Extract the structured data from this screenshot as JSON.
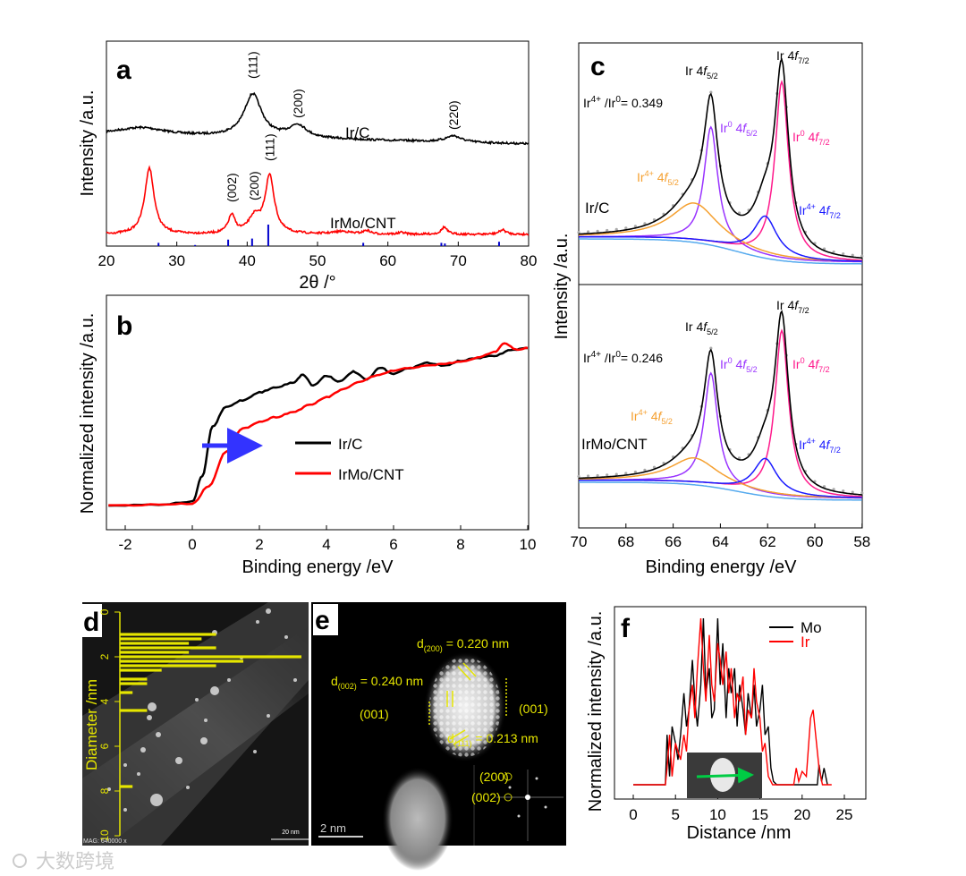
{
  "watermark": "大数跨境",
  "chart_data": [
    {
      "panel": "a",
      "type": "line",
      "title": "",
      "xlabel": "2θ /°",
      "ylabel": "Intensity /a.u.",
      "xlim": [
        20,
        80
      ],
      "xticks": [
        20,
        30,
        40,
        50,
        60,
        70,
        80
      ],
      "series": [
        {
          "name": "Ir/C",
          "color": "#000000",
          "peaks": [
            [
              25,
              4,
              8
            ],
            [
              40.8,
              1.5,
              48
            ],
            [
              47.2,
              1.5,
              14
            ],
            [
              69.3,
              1.3,
              7
            ]
          ]
        },
        {
          "name": "IrMo/CNT",
          "color": "#ff0000",
          "peaks": [
            [
              26.1,
              0.8,
              74
            ],
            [
              37.8,
              0.6,
              20
            ],
            [
              41.0,
              1.0,
              17
            ],
            [
              43.2,
              0.8,
              64
            ],
            [
              53.5,
              1.5,
              3
            ],
            [
              57.0,
              0.6,
              4
            ],
            [
              62,
              0.6,
              2
            ],
            [
              68.0,
              0.5,
              8
            ],
            [
              76.3,
              0.6,
              5
            ]
          ]
        }
      ],
      "reference_lines": {
        "color": "#0000cc",
        "positions": [
          27.4,
          32.6,
          37.3,
          40.7,
          43.0,
          56.5,
          67.6,
          68.1,
          75.8
        ],
        "heights": [
          0.15,
          0.05,
          0.3,
          0.35,
          1.0,
          0.15,
          0.15,
          0.12,
          0.2
        ]
      },
      "peak_labels": [
        {
          "text": "(111)",
          "x": 40.8,
          "series": "Ir/C"
        },
        {
          "text": "(200)",
          "x": 47.2,
          "series": "Ir/C"
        },
        {
          "text": "(220)",
          "x": 69.3,
          "series": "Ir/C"
        },
        {
          "text": "(002)",
          "x": 37.8,
          "series": "IrMo/CNT"
        },
        {
          "text": "(200)",
          "x": 41.0,
          "series": "IrMo/CNT"
        },
        {
          "text": "(111)",
          "x": 43.2,
          "series": "IrMo/CNT"
        }
      ]
    },
    {
      "panel": "b",
      "type": "line",
      "xlabel": "Binding energy /eV",
      "ylabel": "Normalized intensity /a.u.",
      "xlim": [
        -2.5,
        10
      ],
      "xticks": [
        -2,
        0,
        2,
        4,
        6,
        8,
        10
      ],
      "ylim": [
        -0.1,
        1.8
      ],
      "legend": "center-right",
      "series": [
        {
          "name": "Ir/C",
          "color": "#000000",
          "x": [
            -2.5,
            -1,
            0,
            0.3,
            0.6,
            1,
            1.5,
            2,
            2.5,
            3,
            3.3,
            3.6,
            4,
            4.4,
            4.8,
            5.2,
            5.6,
            6,
            6.5,
            7,
            7.5,
            8,
            8.5,
            9,
            9.5,
            10
          ],
          "y": [
            0,
            0.01,
            0.04,
            0.3,
            0.8,
            1.0,
            1.07,
            1.15,
            1.2,
            1.25,
            1.33,
            1.22,
            1.32,
            1.26,
            1.36,
            1.28,
            1.4,
            1.34,
            1.4,
            1.45,
            1.42,
            1.47,
            1.5,
            1.52,
            1.58,
            1.6
          ]
        },
        {
          "name": "IrMo/CNT",
          "color": "#ff0000",
          "x": [
            -2.5,
            -1,
            0,
            0.5,
            1,
            1.5,
            2,
            2.5,
            3,
            3.5,
            4,
            4.5,
            5,
            5.5,
            6,
            6.5,
            7,
            7.5,
            8,
            8.5,
            9,
            9.3,
            9.7,
            10
          ],
          "y": [
            0,
            0.01,
            0.02,
            0.2,
            0.55,
            0.78,
            0.85,
            0.9,
            0.95,
            1.02,
            1.1,
            1.18,
            1.26,
            1.32,
            1.37,
            1.4,
            1.42,
            1.44,
            1.46,
            1.5,
            1.56,
            1.65,
            1.58,
            1.6
          ]
        }
      ],
      "annotation": {
        "text": "",
        "arrow_color": "#3333ff",
        "from": 0.4,
        "to": 2.0
      }
    },
    {
      "panel": "c",
      "type": "line",
      "xlabel": "Binding energy /eV",
      "ylabel": "Intensity /a.u.",
      "xlim": [
        70,
        58
      ],
      "xticks": [
        70,
        68,
        66,
        64,
        62,
        60,
        58
      ],
      "subplots": [
        {
          "sample": "Ir/C",
          "ratio_label": "Ir",
          "ratio_value": "= 0.349",
          "components": {
            "Ir0_4f5/2": [
              64.4,
              0.35,
              130
            ],
            "Ir0_4f7/2": [
              61.4,
              0.35,
              198
            ],
            "Ir4+_4f5/2": [
              65.1,
              1.2,
              42
            ],
            "Ir4+_4f7/2": [
              62.1,
              0.6,
              45
            ]
          }
        },
        {
          "sample": "IrMo/CNT",
          "ratio_label": "Ir",
          "ratio_value": "= 0.246",
          "components": {
            "Ir0_4f5/2": [
              64.4,
              0.35,
              125
            ],
            "Ir0_4f7/2": [
              61.4,
              0.35,
              185
            ],
            "Ir4+_4f5/2": [
              65.1,
              1.2,
              28
            ],
            "Ir4+_4f7/2": [
              62.1,
              0.6,
              40
            ]
          }
        }
      ],
      "colors": {
        "envelope": "#000000",
        "Ir0_4f5/2": "#9933ff",
        "Ir0_4f7/2": "#ff1a8c",
        "Ir4+_4f5/2": "#f5a030",
        "Ir4+_4f7/2": "#1a1aff",
        "background": "#55aaee"
      }
    },
    {
      "panel": "d",
      "type": "bar",
      "orientation": "horizontal",
      "ylabel": "Diameter /nm",
      "ylim": [
        0,
        10
      ],
      "yticks": [
        0,
        2,
        4,
        6,
        8,
        10
      ],
      "categories": [
        1.0,
        1.2,
        1.4,
        1.6,
        1.8,
        2.0,
        2.2,
        2.4,
        2.6,
        3.0,
        3.2,
        3.6,
        4.4,
        7.8
      ],
      "values": [
        5.3,
        4.5,
        3.8,
        5.3,
        3.8,
        10,
        6.8,
        5.3,
        2.3,
        1.5,
        1.5,
        0.7,
        1.5,
        0.7
      ],
      "image_text": {
        "mag": "MAG: 640000 x",
        "scale": "20 nm"
      }
    },
    {
      "panel": "e",
      "type": "image",
      "labels": {
        "d200": "d",
        "d200_sub": "(200)",
        "d200_val": " = 0.220 nm",
        "d002": "d",
        "d002_sub": "(002)",
        "d002_val": " = 0.240 nm",
        "d111": "d",
        "d111_sub": "(111)",
        "d111_val": " = 0.213 nm",
        "facet_left": "(001)",
        "facet_right": "(001)",
        "fft_200": "(200)",
        "fft_002": "(002)",
        "scale": "2 nm"
      }
    },
    {
      "panel": "f",
      "type": "line",
      "xlabel": "Distance /nm",
      "ylabel": "Normalized intensity /a.u.",
      "xlim": [
        -2.2,
        27.5
      ],
      "xticks": [
        0,
        5,
        10,
        15,
        20,
        25
      ],
      "ylim": [
        0,
        1.05
      ],
      "legend": "top-right",
      "series": [
        {
          "name": "Mo",
          "color": "#000000",
          "x": [
            0,
            3.8,
            4,
            4.3,
            4.6,
            5,
            5.3,
            5.6,
            6,
            6.3,
            6.6,
            7,
            7.3,
            7.6,
            8,
            8.3,
            8.6,
            9,
            9.3,
            9.6,
            10,
            10.3,
            10.6,
            11,
            11.3,
            11.6,
            12,
            12.3,
            12.6,
            13,
            13.3,
            13.6,
            14,
            14.3,
            14.6,
            15,
            15.3,
            15.6,
            16,
            16.3,
            16.6,
            17,
            21.8,
            22,
            22.3,
            22.6,
            23
          ],
          "y": [
            0,
            0,
            0.3,
            0.05,
            0.35,
            0.25,
            0.15,
            0.3,
            0.55,
            0.35,
            0.45,
            0.75,
            0.5,
            0.35,
            0.6,
            1.0,
            0.55,
            0.7,
            0.4,
            0.45,
            1.0,
            0.6,
            0.85,
            0.4,
            0.7,
            0.55,
            0.7,
            0.35,
            0.6,
            0.45,
            0.3,
            0.55,
            0.4,
            0.6,
            0.35,
            0.45,
            0.6,
            0.3,
            0.35,
            0.1,
            0.02,
            0,
            0,
            0.12,
            0.02,
            0.1,
            0
          ]
        },
        {
          "name": "Ir",
          "color": "#ff0000",
          "x": [
            0,
            3.8,
            4,
            4.3,
            4.6,
            5,
            5.3,
            5.6,
            6,
            6.3,
            6.6,
            7,
            7.3,
            7.6,
            8,
            8.3,
            8.6,
            9,
            9.3,
            9.6,
            10,
            10.3,
            10.6,
            11,
            11.3,
            11.6,
            12,
            12.3,
            12.6,
            13,
            13.3,
            13.6,
            14,
            14.3,
            14.6,
            15,
            15.3,
            15.6,
            16,
            16.5,
            19,
            19.3,
            19.6,
            20,
            20.5,
            21,
            21.3,
            21.6,
            22,
            22.4,
            23.5
          ],
          "y": [
            0,
            0,
            0.1,
            0.3,
            0.05,
            0.25,
            0.2,
            0.15,
            0.3,
            0.2,
            0.45,
            0.6,
            0.4,
            0.7,
            1.0,
            0.7,
            0.5,
            0.9,
            0.6,
            0.5,
            0.85,
            0.75,
            0.6,
            0.8,
            0.55,
            0.7,
            0.4,
            0.55,
            0.5,
            0.65,
            0.3,
            0.45,
            0.4,
            0.7,
            0.5,
            0.4,
            0.2,
            0.25,
            0.05,
            0,
            0,
            0.1,
            0.02,
            0.08,
            0.05,
            0.4,
            0.45,
            0.3,
            0.1,
            0,
            0
          ]
        }
      ]
    }
  ],
  "labels": {
    "a": "a",
    "b": "b",
    "c": "c",
    "d": "d",
    "e": "e",
    "f": "f",
    "ir4_sup": "4+",
    "ir0_sup": "0",
    "slash_ir": " /Ir",
    "ir4f": "Ir 4",
    "s52": "5/2",
    "s72": "7/2",
    "ir0": "Ir",
    "ir0_4f": " 4",
    "ir4": "Ir",
    "ir4_4f": " 4"
  }
}
